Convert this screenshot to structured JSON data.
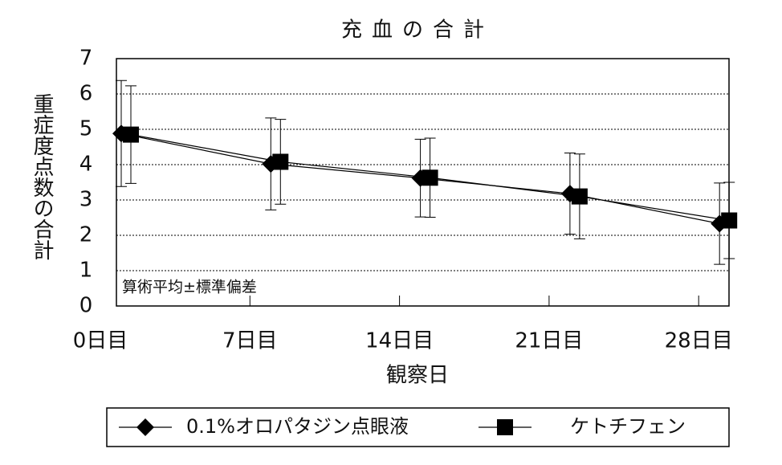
{
  "chart_data": {
    "type": "line",
    "title": "充血の合計",
    "x_label": "観察日",
    "y_label": "重症度点数の合計",
    "annotation": "算術平均±標準偏差",
    "categories": [
      "0日目",
      "7日目",
      "14日目",
      "21日目",
      "28日目"
    ],
    "ylim": [
      0,
      7
    ],
    "yticks": [
      0,
      1,
      2,
      3,
      4,
      5,
      6,
      7
    ],
    "grid": true,
    "series": [
      {
        "name": "0.1%オロパタジン点眼液",
        "color": "#000000",
        "marker": "diamond",
        "values": [
          4.88,
          4.02,
          3.62,
          3.18,
          2.33
        ],
        "errors": [
          1.5,
          1.3,
          1.1,
          1.15,
          1.15
        ]
      },
      {
        "name": "ケトチフェン",
        "color": "#000000",
        "marker": "square",
        "values": [
          4.85,
          4.08,
          3.63,
          3.1,
          2.42
        ],
        "errors": [
          1.38,
          1.2,
          1.12,
          1.2,
          1.08
        ]
      }
    ]
  }
}
